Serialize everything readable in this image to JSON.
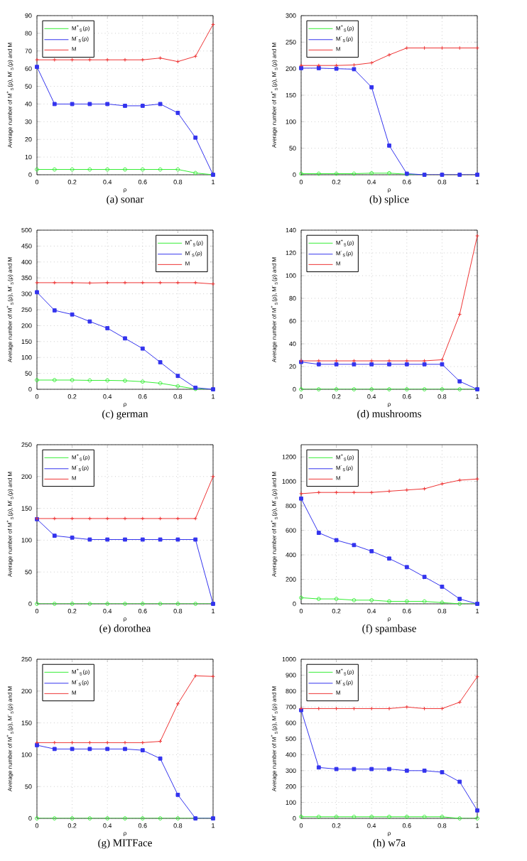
{
  "chart_data": [
    {
      "type": "line",
      "title": "(a) sonar",
      "xlabel": "ρ",
      "ylabel": "Average number of M$^{+}$$_{S}$(ρ), M$^{-}$$_{S}$(ρ) and M",
      "x": [
        0,
        0.1,
        0.2,
        0.3,
        0.4,
        0.5,
        0.6,
        0.7,
        0.8,
        0.9,
        1
      ],
      "xlim": [
        0,
        1
      ],
      "xticks": [
        0,
        0.2,
        0.4,
        0.6,
        0.8,
        1
      ],
      "ylim": [
        0,
        90
      ],
      "yticks": [
        0,
        10,
        20,
        30,
        40,
        50,
        60,
        70,
        80,
        90
      ],
      "grid": true,
      "legend": "top left",
      "series": [
        {
          "name": "M$^{+}$$_{S}$(ρ)",
          "color": "#33ee33",
          "marker": "circle",
          "values": [
            3,
            3,
            3,
            3,
            3,
            3,
            3,
            3,
            3,
            1,
            0
          ]
        },
        {
          "name": "M$^{-}$$_{S}$(ρ)",
          "color": "#3333ee",
          "marker": "square",
          "values": [
            61,
            40,
            40,
            40,
            40,
            39,
            39,
            40,
            35,
            21,
            0
          ]
        },
        {
          "name": "M",
          "color": "#ee3333",
          "marker": "cross",
          "values": [
            65,
            65,
            65,
            65,
            65,
            65,
            65,
            66,
            64,
            67,
            85
          ]
        }
      ]
    },
    {
      "type": "line",
      "title": "(b) splice",
      "xlabel": "ρ",
      "ylabel": "Average number of M$^{+}$$_{S}$(ρ), M$^{-}$$_{S}$(ρ) and M",
      "x": [
        0,
        0.1,
        0.2,
        0.3,
        0.4,
        0.5,
        0.6,
        0.7,
        0.8,
        0.9,
        1
      ],
      "xlim": [
        0,
        1
      ],
      "xticks": [
        0,
        0.2,
        0.4,
        0.6,
        0.8,
        1
      ],
      "ylim": [
        0,
        300
      ],
      "yticks": [
        0,
        50,
        100,
        150,
        200,
        250,
        300
      ],
      "grid": true,
      "legend": "top left",
      "series": [
        {
          "name": "M$^{+}$$_{S}$(ρ)",
          "color": "#33ee33",
          "marker": "circle",
          "values": [
            2,
            2,
            2,
            2,
            3,
            3,
            1,
            0,
            null,
            null,
            null
          ]
        },
        {
          "name": "M$^{-}$$_{S}$(ρ)",
          "color": "#3333ee",
          "marker": "square",
          "values": [
            201,
            201,
            200,
            199,
            165,
            55,
            2,
            0,
            0,
            0,
            0
          ]
        },
        {
          "name": "M",
          "color": "#ee3333",
          "marker": "cross",
          "values": [
            206,
            206,
            206,
            207,
            211,
            226,
            239,
            239,
            239,
            239,
            239
          ]
        }
      ]
    },
    {
      "type": "line",
      "title": "(c) german",
      "xlabel": "ρ",
      "ylabel": "Average number of M$^{+}$$_{S}$(ρ), M$^{-}$$_{S}$(ρ) and M",
      "x": [
        0,
        0.1,
        0.2,
        0.3,
        0.4,
        0.5,
        0.6,
        0.7,
        0.8,
        0.9,
        1
      ],
      "xlim": [
        0,
        1
      ],
      "xticks": [
        0,
        0.2,
        0.4,
        0.6,
        0.8,
        1
      ],
      "ylim": [
        0,
        500
      ],
      "yticks": [
        0,
        50,
        100,
        150,
        200,
        250,
        300,
        350,
        400,
        450,
        500
      ],
      "grid": true,
      "legend": "top right",
      "series": [
        {
          "name": "M$^{+}$$_{S}$(ρ)",
          "color": "#33ee33",
          "marker": "circle",
          "values": [
            29,
            29,
            29,
            28,
            28,
            27,
            24,
            19,
            10,
            1,
            0
          ]
        },
        {
          "name": "M$^{-}$$_{S}$(ρ)",
          "color": "#3333ee",
          "marker": "square",
          "values": [
            305,
            248,
            235,
            213,
            192,
            160,
            128,
            85,
            42,
            5,
            0
          ]
        },
        {
          "name": "M",
          "color": "#ee3333",
          "marker": "cross",
          "values": [
            335,
            335,
            335,
            334,
            335,
            335,
            335,
            335,
            335,
            335,
            331
          ]
        }
      ]
    },
    {
      "type": "line",
      "title": "(d) mushrooms",
      "xlabel": "ρ",
      "ylabel": "Average number of M$^{+}$$_{S}$(ρ), M$^{-}$$_{S}$(ρ) and M",
      "x": [
        0,
        0.1,
        0.2,
        0.3,
        0.4,
        0.5,
        0.6,
        0.7,
        0.8,
        0.9,
        1
      ],
      "xlim": [
        0,
        1
      ],
      "xticks": [
        0,
        0.2,
        0.4,
        0.6,
        0.8,
        1
      ],
      "ylim": [
        0,
        140
      ],
      "yticks": [
        0,
        20,
        40,
        60,
        80,
        100,
        120,
        140
      ],
      "grid": true,
      "legend": "top left",
      "series": [
        {
          "name": "M$^{+}$$_{S}$(ρ)",
          "color": "#33ee33",
          "marker": "circle",
          "values": [
            0,
            0,
            0,
            0,
            0,
            0,
            0,
            0,
            0,
            0,
            0
          ]
        },
        {
          "name": "M$^{-}$$_{S}$(ρ)",
          "color": "#3333ee",
          "marker": "square",
          "values": [
            24,
            22,
            22,
            22,
            22,
            22,
            22,
            22,
            22,
            7,
            0
          ]
        },
        {
          "name": "M",
          "color": "#ee3333",
          "marker": "cross",
          "values": [
            25,
            25,
            25,
            25,
            25,
            25,
            25,
            25,
            26,
            66,
            135
          ]
        }
      ]
    },
    {
      "type": "line",
      "title": "(e) dorothea",
      "xlabel": "ρ",
      "ylabel": "Average number of M$^{+}$$_{S}$(ρ), M$^{-}$$_{S}$(ρ) and M",
      "x": [
        0,
        0.1,
        0.2,
        0.3,
        0.4,
        0.5,
        0.6,
        0.7,
        0.8,
        0.9,
        1
      ],
      "xlim": [
        0,
        1
      ],
      "xticks": [
        0,
        0.2,
        0.4,
        0.6,
        0.8,
        1
      ],
      "ylim": [
        0,
        250
      ],
      "yticks": [
        0,
        50,
        100,
        150,
        200,
        250
      ],
      "grid": true,
      "legend": "top left",
      "series": [
        {
          "name": "M$^{+}$$_{S}$(ρ)",
          "color": "#33ee33",
          "marker": "circle",
          "values": [
            0,
            0,
            0,
            0,
            0,
            0,
            0,
            0,
            0,
            0,
            0
          ]
        },
        {
          "name": "M$^{-}$$_{S}$(ρ)",
          "color": "#3333ee",
          "marker": "square",
          "values": [
            133,
            107,
            104,
            101,
            101,
            101,
            101,
            101,
            101,
            101,
            0
          ]
        },
        {
          "name": "M",
          "color": "#ee3333",
          "marker": "cross",
          "values": [
            134,
            134,
            134,
            134,
            134,
            134,
            134,
            134,
            134,
            134,
            200
          ]
        }
      ]
    },
    {
      "type": "line",
      "title": "(f) spambase",
      "xlabel": "ρ",
      "ylabel": "Average number of M$^{+}$$_{S}$(ρ), M$^{-}$$_{S}$(ρ) and M",
      "x": [
        0,
        0.1,
        0.2,
        0.3,
        0.4,
        0.5,
        0.6,
        0.7,
        0.8,
        0.9,
        1
      ],
      "xlim": [
        0,
        1
      ],
      "xticks": [
        0,
        0.2,
        0.4,
        0.6,
        0.8,
        1
      ],
      "ylim": [
        0,
        1300
      ],
      "yticks": [
        0,
        200,
        400,
        600,
        800,
        1000,
        1200
      ],
      "grid": true,
      "legend": "top left",
      "series": [
        {
          "name": "M$^{+}$$_{S}$(ρ)",
          "color": "#33ee33",
          "marker": "circle",
          "values": [
            50,
            40,
            40,
            30,
            30,
            20,
            20,
            20,
            10,
            0,
            0
          ]
        },
        {
          "name": "M$^{-}$$_{S}$(ρ)",
          "color": "#3333ee",
          "marker": "square",
          "values": [
            860,
            580,
            520,
            480,
            430,
            370,
            300,
            220,
            140,
            40,
            0
          ]
        },
        {
          "name": "M",
          "color": "#ee3333",
          "marker": "cross",
          "values": [
            900,
            910,
            910,
            910,
            910,
            920,
            930,
            940,
            980,
            1010,
            1020
          ]
        }
      ]
    },
    {
      "type": "line",
      "title": "(g) MITFace",
      "xlabel": "ρ",
      "ylabel": "Average number of M$^{+}$$_{S}$(ρ), M$^{-}$$_{S}$(ρ) and M",
      "x": [
        0,
        0.1,
        0.2,
        0.3,
        0.4,
        0.5,
        0.6,
        0.7,
        0.8,
        0.9,
        1
      ],
      "xlim": [
        0,
        1
      ],
      "xticks": [
        0,
        0.2,
        0.4,
        0.6,
        0.8,
        1
      ],
      "ylim": [
        0,
        250
      ],
      "yticks": [
        0,
        50,
        100,
        150,
        200,
        250
      ],
      "grid": true,
      "legend": "top left",
      "series": [
        {
          "name": "M$^{+}$$_{S}$(ρ)",
          "color": "#33ee33",
          "marker": "circle",
          "values": [
            0,
            0,
            0,
            0,
            0,
            0,
            0,
            0,
            0,
            0,
            0
          ]
        },
        {
          "name": "M$^{-}$$_{S}$(ρ)",
          "color": "#3333ee",
          "marker": "square",
          "values": [
            115,
            109,
            109,
            109,
            109,
            109,
            107,
            94,
            37,
            0,
            0
          ]
        },
        {
          "name": "M",
          "color": "#ee3333",
          "marker": "cross",
          "values": [
            119,
            119,
            119,
            119,
            119,
            119,
            119,
            121,
            180,
            224,
            223
          ]
        }
      ]
    },
    {
      "type": "line",
      "title": "(h) w7a",
      "xlabel": "ρ",
      "ylabel": "Average number of M$^{+}$$_{S}$(ρ), M$^{-}$$_{S}$(ρ) and M",
      "x": [
        0,
        0.1,
        0.2,
        0.3,
        0.4,
        0.5,
        0.6,
        0.7,
        0.8,
        0.9,
        1
      ],
      "xlim": [
        0,
        1
      ],
      "xticks": [
        0,
        0.2,
        0.4,
        0.6,
        0.8,
        1
      ],
      "ylim": [
        0,
        1000
      ],
      "yticks": [
        0,
        100,
        200,
        300,
        400,
        500,
        600,
        700,
        800,
        900,
        1000
      ],
      "grid": true,
      "legend": "top left",
      "series": [
        {
          "name": "M$^{+}$$_{S}$(ρ)",
          "color": "#33ee33",
          "marker": "circle",
          "values": [
            10,
            10,
            10,
            10,
            10,
            10,
            10,
            10,
            10,
            0,
            0
          ]
        },
        {
          "name": "M$^{-}$$_{S}$(ρ)",
          "color": "#3333ee",
          "marker": "square",
          "values": [
            680,
            320,
            310,
            310,
            310,
            310,
            300,
            300,
            290,
            230,
            50
          ]
        },
        {
          "name": "M",
          "color": "#ee3333",
          "marker": "cross",
          "values": [
            690,
            690,
            690,
            690,
            690,
            690,
            700,
            690,
            690,
            730,
            890
          ]
        }
      ]
    }
  ]
}
